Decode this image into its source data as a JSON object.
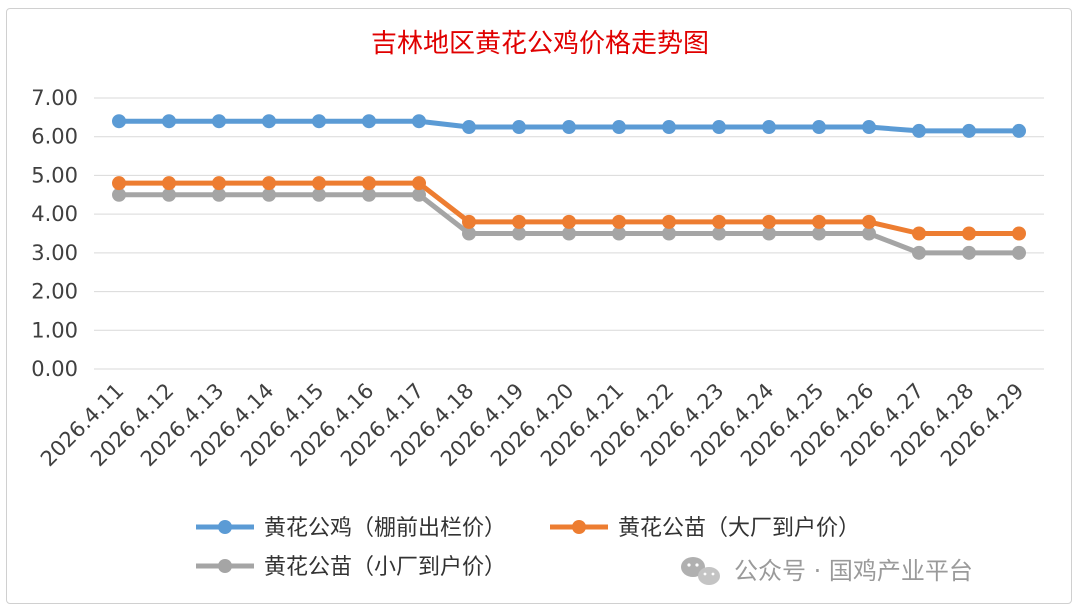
{
  "chart_data": {
    "type": "line",
    "title": "吉林地区黄花公鸡价格走势图",
    "categories": [
      "2026.4.11",
      "2026.4.12",
      "2026.4.13",
      "2026.4.14",
      "2026.4.15",
      "2026.4.16",
      "2026.4.17",
      "2026.4.18",
      "2026.4.19",
      "2026.4.20",
      "2026.4.21",
      "2026.4.22",
      "2026.4.23",
      "2026.4.24",
      "2026.4.25",
      "2026.4.26",
      "2026.4.27",
      "2026.4.28",
      "2026.4.29"
    ],
    "y_ticks": [
      "0.00",
      "1.00",
      "2.00",
      "3.00",
      "4.00",
      "5.00",
      "6.00",
      "7.00"
    ],
    "ylim": [
      0,
      7
    ],
    "grid": true,
    "legend_position": "bottom",
    "series": [
      {
        "name": "黄花公鸡（棚前出栏价）",
        "color": "#5b9bd5",
        "values": [
          6.4,
          6.4,
          6.4,
          6.4,
          6.4,
          6.4,
          6.4,
          6.25,
          6.25,
          6.25,
          6.25,
          6.25,
          6.25,
          6.25,
          6.25,
          6.25,
          6.15,
          6.15,
          6.15
        ]
      },
      {
        "name": "黄花公苗（大厂到户价）",
        "color": "#ed7d31",
        "values": [
          4.8,
          4.8,
          4.8,
          4.8,
          4.8,
          4.8,
          4.8,
          3.8,
          3.8,
          3.8,
          3.8,
          3.8,
          3.8,
          3.8,
          3.8,
          3.8,
          3.5,
          3.5,
          3.5
        ]
      },
      {
        "name": "黄花公苗（小厂到户价）",
        "color": "#a5a5a5",
        "values": [
          4.5,
          4.5,
          4.5,
          4.5,
          4.5,
          4.5,
          4.5,
          3.5,
          3.5,
          3.5,
          3.5,
          3.5,
          3.5,
          3.5,
          3.5,
          3.5,
          3.0,
          3.0,
          3.0
        ]
      }
    ]
  },
  "watermark": {
    "text": "公众号 · 国鸡产业平台",
    "icon": "wechat-icon"
  }
}
